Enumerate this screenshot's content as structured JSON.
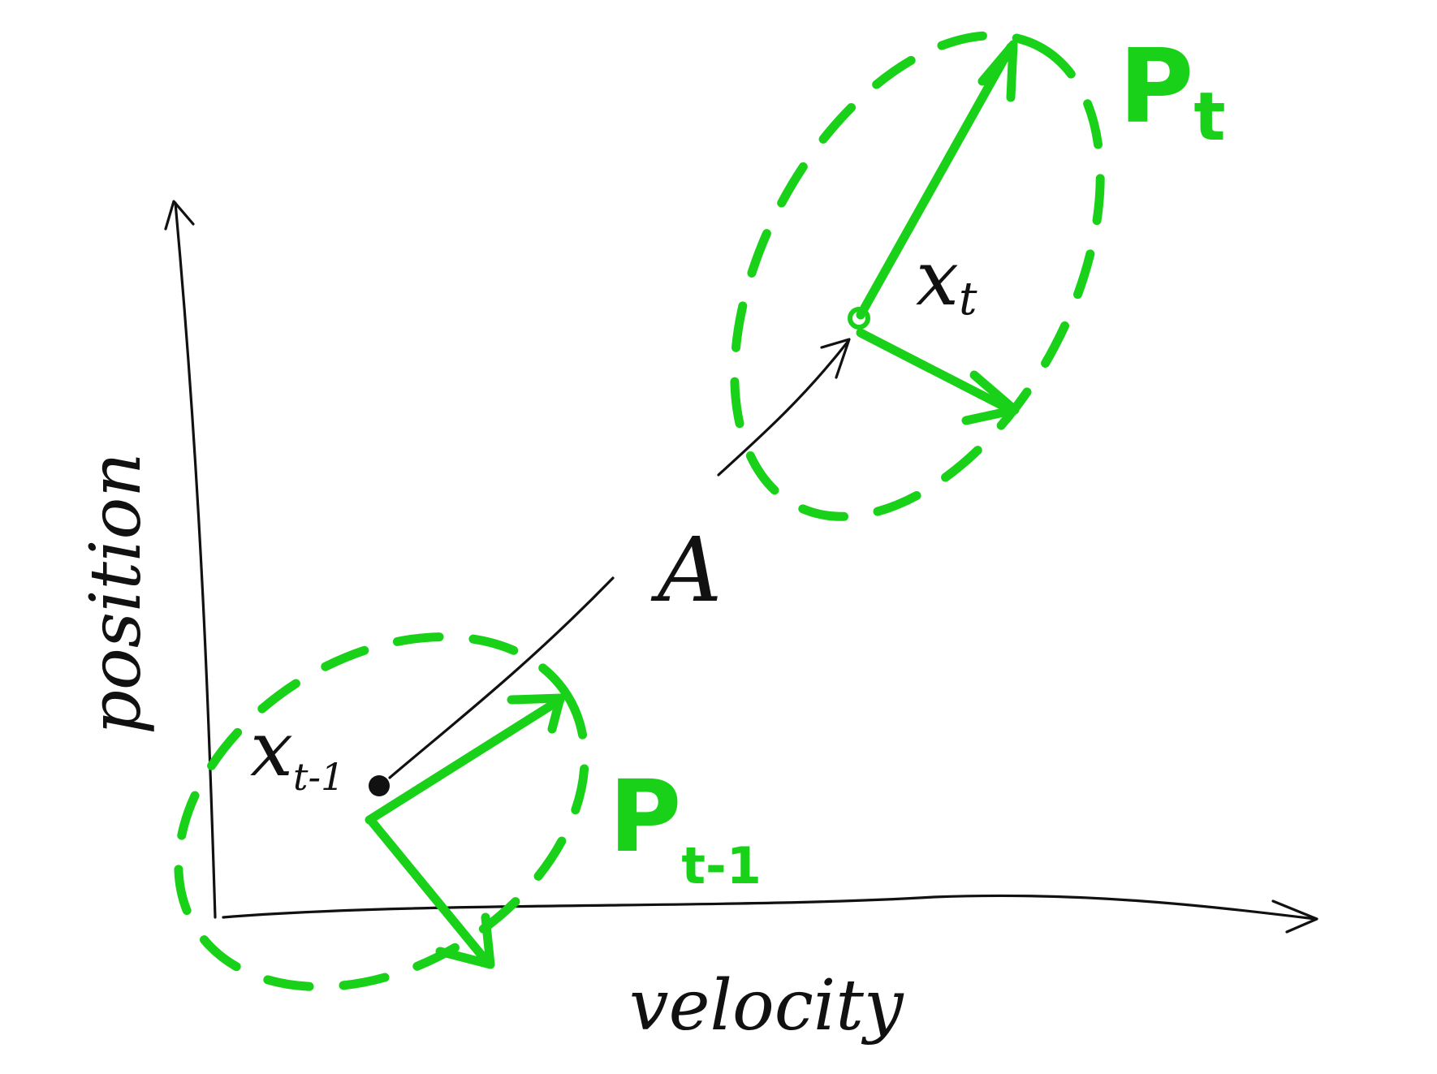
{
  "axes": {
    "x_label": "velocity",
    "y_label": "position"
  },
  "transition": {
    "label": "A"
  },
  "states": {
    "previous": {
      "symbol": "x",
      "subscript": "t-1"
    },
    "current": {
      "symbol": "x",
      "subscript": "t"
    }
  },
  "covariances": {
    "previous": {
      "symbol": "P",
      "subscript": "t-1"
    },
    "current": {
      "symbol": "P",
      "subscript": "t"
    }
  },
  "colors": {
    "ink": "#111111",
    "covariance": "#19d119",
    "background": "#ffffff"
  }
}
